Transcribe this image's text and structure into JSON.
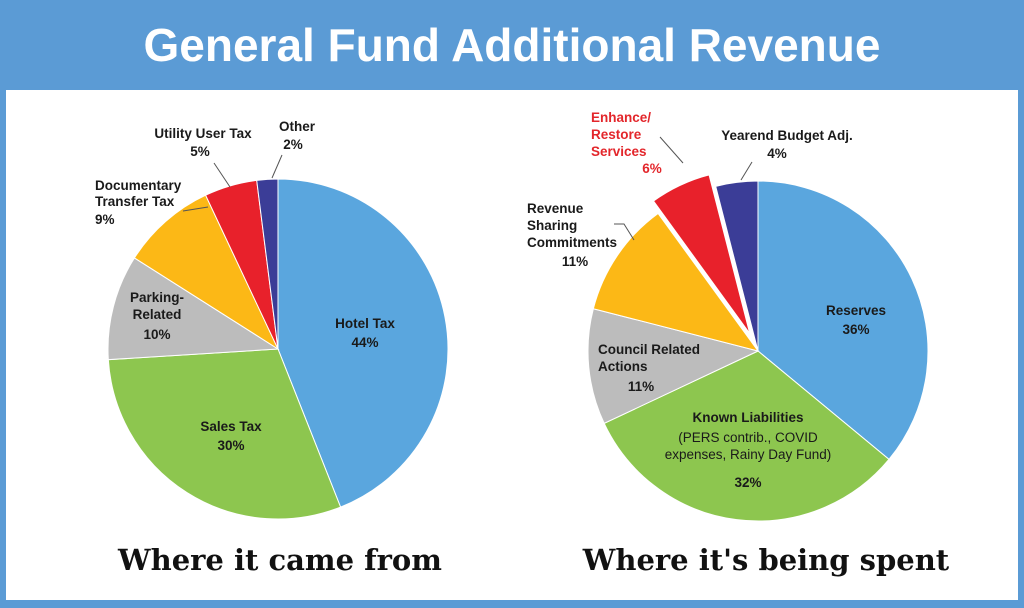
{
  "title": "General Fund Additional Revenue",
  "colors": {
    "header_bg": "#5b9bd5",
    "blue": "#5aa6de",
    "green": "#8dc64f",
    "gray": "#bcbcbc",
    "orange": "#fcb816",
    "red": "#e8212b",
    "navy": "#3b3d97",
    "red_label": "#e3262b"
  },
  "chart_data": [
    {
      "type": "pie",
      "caption": "Where it came from",
      "slices": [
        {
          "label": "Hotel Tax",
          "pct_text": "44%",
          "value": 44,
          "color": "#5aa6de"
        },
        {
          "label": "Sales Tax",
          "pct_text": "30%",
          "value": 30,
          "color": "#8dc64f"
        },
        {
          "label_lines": [
            "Parking-",
            "Related"
          ],
          "pct_text": "10%",
          "value": 10,
          "color": "#bcbcbc"
        },
        {
          "label_lines": [
            "Documentary",
            "Transfer Tax"
          ],
          "pct_text": "9%",
          "value": 9,
          "color": "#fcb816"
        },
        {
          "label": "Utility User Tax",
          "pct_text": "5%",
          "value": 5,
          "color": "#e8212b"
        },
        {
          "label": "Other",
          "pct_text": "2%",
          "value": 2,
          "color": "#3b3d97"
        }
      ]
    },
    {
      "type": "pie",
      "caption": "Where it's being spent",
      "slices": [
        {
          "label": "Reserves",
          "pct_text": "36%",
          "value": 36,
          "color": "#5aa6de"
        },
        {
          "label": "Known Liabilities",
          "sublabel_lines": [
            "(PERS contrib., COVID",
            "expenses, Rainy Day Fund)"
          ],
          "pct_text": "32%",
          "value": 32,
          "color": "#8dc64f"
        },
        {
          "label_lines": [
            "Council Related",
            "Actions"
          ],
          "pct_text": "11%",
          "value": 11,
          "color": "#bcbcbc"
        },
        {
          "label_lines": [
            "Revenue",
            "Sharing",
            "Commitments"
          ],
          "pct_text": "11%",
          "value": 11,
          "color": "#fcb816"
        },
        {
          "label_lines": [
            "Enhance/",
            "Restore",
            "Services"
          ],
          "pct_text": "6%",
          "value": 6,
          "color": "#e8212b",
          "exploded": true
        },
        {
          "label": "Yearend Budget Adj.",
          "pct_text": "4%",
          "value": 4,
          "color": "#3b3d97"
        }
      ]
    }
  ]
}
